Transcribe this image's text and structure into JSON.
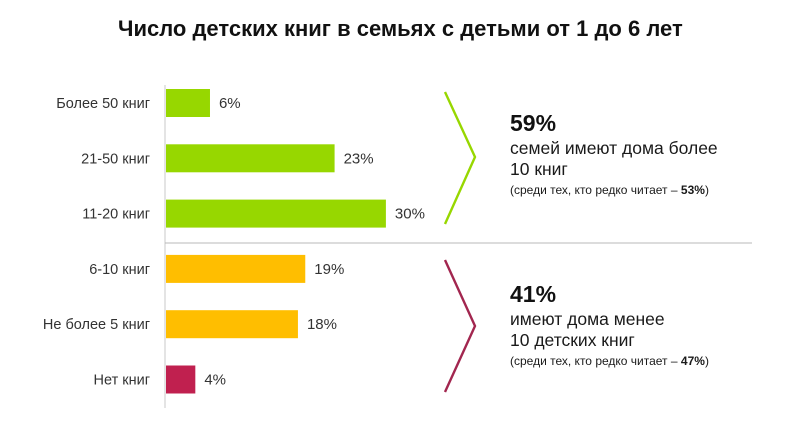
{
  "title": "Число детских книг в семьях с детьми от 1 до 6 лет",
  "colors": {
    "high": "#97d700",
    "mid": "#ffbe00",
    "low": "#c0204f",
    "upper_brace": "#97d700",
    "lower_brace": "#a2264f"
  },
  "chart_data": {
    "type": "bar",
    "orientation": "horizontal",
    "title": "Число детских книг в семьях с детьми от 1 до 6 лет",
    "categories": [
      "Более 50 книг",
      "21-50 книг",
      "11-20 книг",
      "6-10 книг",
      "Не более 5 книг",
      "Нет книг"
    ],
    "values": [
      6,
      23,
      30,
      19,
      18,
      4
    ],
    "value_labels": [
      "6%",
      "23%",
      "30%",
      "19%",
      "18%",
      "4%"
    ],
    "color_groups": [
      "high",
      "high",
      "high",
      "mid",
      "mid",
      "low"
    ],
    "unit": "%",
    "xlim": [
      0,
      30
    ]
  },
  "summary_upper": {
    "percent": "59%",
    "line1": "семей имеют дома более",
    "line2": "10 книг",
    "note_prefix": "(среди тех, кто редко читает – ",
    "note_value": "53%",
    "note_suffix": ")"
  },
  "summary_lower": {
    "percent": "41%",
    "line1": "имеют дома менее",
    "line2": "10 детских книг",
    "note_prefix": "(среди тех, кто редко читает – ",
    "note_value": "47%",
    "note_suffix": ")"
  }
}
